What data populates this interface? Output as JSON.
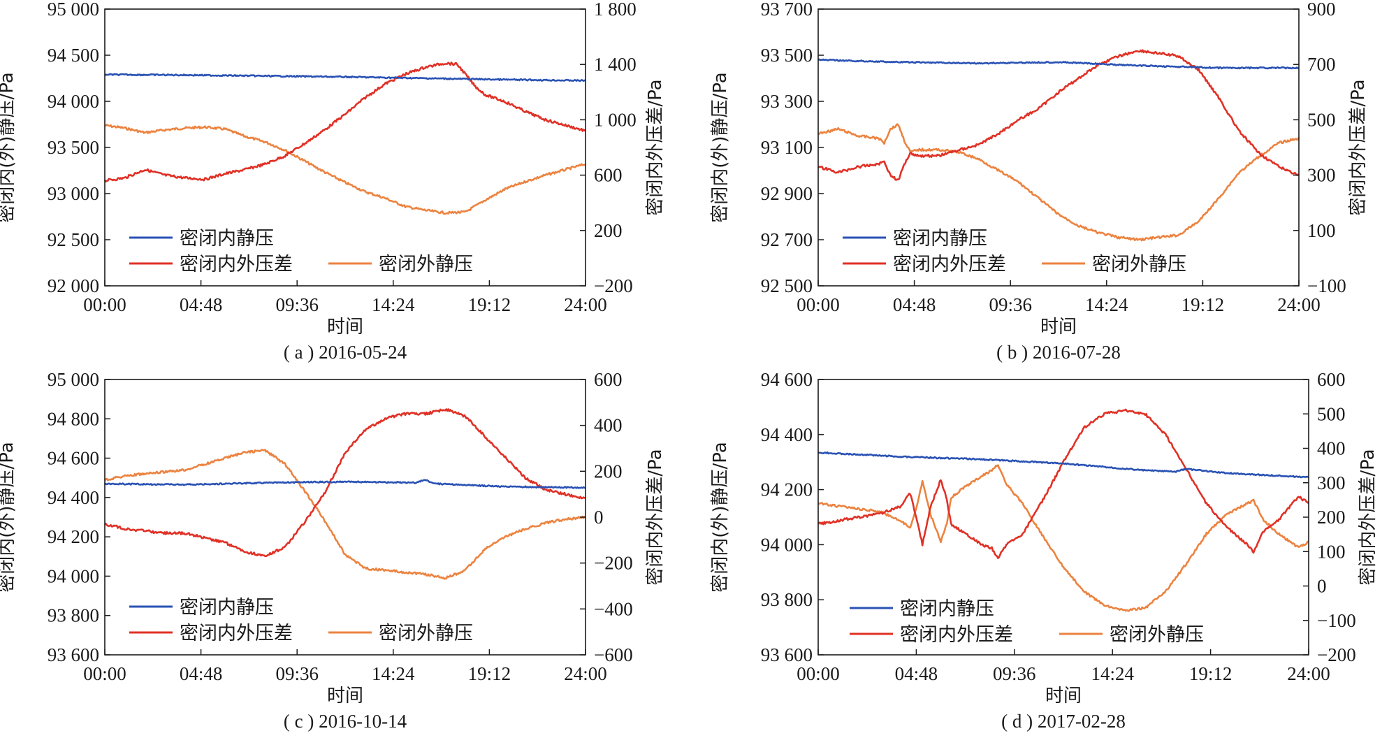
{
  "colors": {
    "inside": "#2a52b4",
    "difference": "#e03126",
    "outside": "#ec8340"
  },
  "chart_data": [
    {
      "type": "line",
      "caption": "( a ) 2016-05-24",
      "xlabel": "时间",
      "ylabel_left": "密闭内(外)静压/Pa",
      "ylabel_right": "密闭内外压差/Pa",
      "x_ticks": [
        "00:00",
        "04:48",
        "09:36",
        "14:24",
        "19:12",
        "24:00"
      ],
      "xlim_hours": [
        0,
        24
      ],
      "ylim_left": [
        92000,
        95000
      ],
      "ylim_right": [
        -200,
        1800
      ],
      "left_tick_labels": [
        "92 000",
        "92 500",
        "93 000",
        "93 500",
        "94 000",
        "94 500",
        "95 000"
      ],
      "left_tick_values": [
        92000,
        92500,
        93000,
        93500,
        94000,
        94500,
        95000
      ],
      "right_tick_labels": [
        "−200",
        "200",
        "600",
        "1 000",
        "1 400",
        "1 800"
      ],
      "right_tick_values": [
        -200,
        200,
        600,
        1000,
        1400,
        1800
      ],
      "legend": {
        "inside": "密闭内静压",
        "difference": "密闭内外压差",
        "outside": "密闭外静压"
      },
      "series": [
        {
          "key": "inside",
          "name": "密闭内静压",
          "axis": "left",
          "x": [
            0,
            4,
            8,
            12,
            16,
            20,
            24
          ],
          "y": [
            94290,
            94285,
            94275,
            94265,
            94250,
            94235,
            94225
          ]
        },
        {
          "key": "difference",
          "name": "密闭内外压差",
          "axis": "right",
          "x": [
            0,
            1,
            2,
            3,
            4,
            5,
            6,
            7,
            8,
            9,
            10,
            11,
            12,
            13,
            14,
            15,
            16,
            17,
            17.6,
            18,
            18.5,
            19,
            20,
            21,
            22,
            23,
            24
          ],
          "y": [
            560,
            580,
            640,
            600,
            580,
            570,
            610,
            640,
            680,
            740,
            830,
            930,
            1040,
            1160,
            1260,
            1330,
            1380,
            1410,
            1400,
            1330,
            1240,
            1180,
            1130,
            1060,
            1000,
            960,
            920
          ]
        },
        {
          "key": "outside",
          "name": "密闭外静压",
          "axis": "left",
          "x": [
            0,
            1,
            2,
            3,
            4,
            5,
            6,
            7,
            8,
            9,
            10,
            11,
            12,
            13,
            14,
            15,
            16,
            17,
            18,
            19,
            20,
            21,
            22,
            23,
            24
          ],
          "y": [
            93740,
            93710,
            93660,
            93690,
            93710,
            93720,
            93700,
            93620,
            93560,
            93470,
            93350,
            93230,
            93120,
            93020,
            92950,
            92860,
            92820,
            92790,
            92800,
            92930,
            93050,
            93130,
            93200,
            93260,
            93320
          ]
        }
      ]
    },
    {
      "type": "line",
      "caption": "( b ) 2016-07-28",
      "xlabel": "时间",
      "ylabel_left": "密闭内(外)静压/Pa",
      "ylabel_right": "密闭内外压差/Pa",
      "x_ticks": [
        "00:00",
        "04:48",
        "09:36",
        "14:24",
        "19:12",
        "24:00"
      ],
      "xlim_hours": [
        0,
        24
      ],
      "ylim_left": [
        92500,
        93700
      ],
      "ylim_right": [
        -100,
        900
      ],
      "left_tick_labels": [
        "92 500",
        "92 700",
        "92 900",
        "93 100",
        "93 300",
        "93 500",
        "93 700"
      ],
      "left_tick_values": [
        92500,
        92700,
        92900,
        93100,
        93300,
        93500,
        93700
      ],
      "right_tick_labels": [
        "−100",
        "100",
        "300",
        "500",
        "700",
        "900"
      ],
      "right_tick_values": [
        -100,
        100,
        300,
        500,
        700,
        900
      ],
      "legend": {
        "inside": "密闭内静压",
        "difference": "密闭内外压差",
        "outside": "密闭外静压"
      },
      "series": [
        {
          "key": "inside",
          "name": "密闭内静压",
          "axis": "left",
          "x": [
            0,
            4,
            8,
            12,
            16,
            20,
            24
          ],
          "y": [
            93480,
            93470,
            93465,
            93470,
            93455,
            93445,
            93445
          ]
        },
        {
          "key": "difference",
          "name": "密闭内外压差",
          "axis": "right",
          "x": [
            0,
            1,
            2,
            3,
            3.3,
            3.6,
            4,
            4.3,
            4.6,
            5,
            6,
            7,
            8,
            9,
            10,
            11,
            12,
            13,
            14,
            15,
            16,
            17,
            18,
            19,
            20,
            21,
            22,
            23,
            24
          ],
          "y": [
            330,
            310,
            330,
            340,
            350,
            300,
            280,
            340,
            380,
            370,
            370,
            390,
            410,
            450,
            500,
            540,
            600,
            650,
            700,
            730,
            750,
            740,
            730,
            680,
            580,
            460,
            380,
            330,
            300
          ]
        },
        {
          "key": "outside",
          "name": "密闭外静压",
          "axis": "left",
          "x": [
            0,
            1,
            2,
            3,
            3.3,
            3.6,
            4,
            4.3,
            4.6,
            5,
            6,
            7,
            8,
            9,
            10,
            11,
            12,
            13,
            14,
            15,
            16,
            17,
            18,
            19,
            20,
            21,
            22,
            23,
            24
          ],
          "y": [
            93160,
            93180,
            93150,
            93140,
            93120,
            93180,
            93200,
            93130,
            93080,
            93090,
            93090,
            93080,
            93050,
            93000,
            92950,
            92880,
            92810,
            92760,
            92730,
            92710,
            92700,
            92710,
            92720,
            92780,
            92880,
            92990,
            93060,
            93120,
            93140
          ]
        }
      ]
    },
    {
      "type": "line",
      "caption": "( c ) 2016-10-14",
      "xlabel": "时间",
      "ylabel_left": "密闭内(外)静压/Pa",
      "ylabel_right": "密闭内外压差/Pa",
      "x_ticks": [
        "00:00",
        "04:48",
        "09:36",
        "14:24",
        "19:12",
        "24:00"
      ],
      "xlim_hours": [
        0,
        24
      ],
      "ylim_left": [
        93600,
        95000
      ],
      "ylim_right": [
        -600,
        600
      ],
      "left_tick_labels": [
        "93 600",
        "93 800",
        "94 000",
        "94 200",
        "94 400",
        "94 600",
        "94 800",
        "95 000"
      ],
      "left_tick_values": [
        93600,
        93800,
        94000,
        94200,
        94400,
        94600,
        94800,
        95000
      ],
      "right_tick_labels": [
        "−600",
        "−400",
        "−200",
        "0",
        "200",
        "400",
        "600"
      ],
      "right_tick_values": [
        -600,
        -400,
        -200,
        0,
        200,
        400,
        600
      ],
      "legend": {
        "inside": "密闭内静压",
        "difference": "密闭内外压差",
        "outside": "密闭外静压"
      },
      "series": [
        {
          "key": "inside",
          "name": "密闭内静压",
          "axis": "left",
          "x": [
            0,
            4,
            8,
            12,
            15.5,
            16,
            16.5,
            20,
            24
          ],
          "y": [
            94470,
            94465,
            94475,
            94480,
            94475,
            94490,
            94470,
            94455,
            94450
          ]
        },
        {
          "key": "difference",
          "name": "密闭内外压差",
          "axis": "right",
          "x": [
            0,
            1,
            2,
            3,
            4,
            5,
            6,
            7,
            8,
            9,
            10,
            11,
            12,
            13,
            14,
            15,
            16,
            17,
            18,
            19,
            20,
            21,
            22,
            23,
            24
          ],
          "y": [
            -30,
            -50,
            -60,
            -70,
            -70,
            -90,
            -110,
            -150,
            -170,
            -130,
            -20,
            110,
            280,
            380,
            430,
            450,
            450,
            470,
            440,
            350,
            260,
            170,
            120,
            100,
            80
          ]
        },
        {
          "key": "outside",
          "name": "密闭外静压",
          "axis": "left",
          "x": [
            0,
            1,
            2,
            3,
            4,
            5,
            6,
            7,
            8,
            9,
            10,
            11,
            12,
            13,
            14,
            15,
            16,
            17,
            18,
            19,
            20,
            21,
            22,
            23,
            24
          ],
          "y": [
            94490,
            94510,
            94520,
            94530,
            94540,
            94570,
            94600,
            94630,
            94640,
            94570,
            94430,
            94280,
            94110,
            94040,
            94030,
            94020,
            94010,
            93990,
            94030,
            94140,
            94200,
            94240,
            94270,
            94290,
            94300
          ]
        }
      ]
    },
    {
      "type": "line",
      "caption": "( d ) 2017-02-28",
      "xlabel": "时间",
      "ylabel_left": "密闭内(外)静压/Pa",
      "ylabel_right": "密闭内外压差/Pa",
      "x_ticks": [
        "00:00",
        "04:48",
        "09:36",
        "14:24",
        "19:12",
        "24:00"
      ],
      "xlim_hours": [
        0,
        24
      ],
      "ylim_left": [
        93600,
        94600
      ],
      "ylim_right": [
        -200,
        600
      ],
      "left_tick_labels": [
        "93 600",
        "93 800",
        "94 000",
        "94 200",
        "94 400",
        "94 600"
      ],
      "left_tick_values": [
        93600,
        93800,
        94000,
        94200,
        94400,
        94600
      ],
      "right_tick_labels": [
        "−200",
        "−100",
        "0",
        "100",
        "200",
        "300",
        "400",
        "500",
        "600"
      ],
      "right_tick_values": [
        -200,
        -100,
        0,
        100,
        200,
        300,
        400,
        500,
        600
      ],
      "legend": {
        "inside": "密闭内静压",
        "difference": "密闭内外压差",
        "outside": "密闭外静压"
      },
      "series": [
        {
          "key": "inside",
          "name": "密闭内静压",
          "axis": "left",
          "x": [
            0,
            4,
            8,
            12,
            16,
            17.5,
            18,
            20,
            24
          ],
          "y": [
            94335,
            94320,
            94310,
            94295,
            94270,
            94265,
            94275,
            94260,
            94245
          ]
        },
        {
          "key": "difference",
          "name": "密闭内外压差",
          "axis": "right",
          "x": [
            0,
            1,
            2,
            3,
            4,
            4.5,
            4.8,
            5.1,
            5.5,
            6,
            6.3,
            6.5,
            7,
            8,
            8.5,
            8.8,
            9.2,
            10,
            11,
            12,
            13,
            14,
            15,
            16,
            17,
            18,
            19,
            20,
            21,
            21.3,
            21.8,
            22.5,
            23.5,
            24
          ],
          "y": [
            180,
            190,
            200,
            210,
            230,
            270,
            200,
            120,
            230,
            310,
            250,
            180,
            160,
            120,
            110,
            80,
            120,
            150,
            250,
            360,
            460,
            500,
            510,
            500,
            440,
            340,
            240,
            170,
            120,
            100,
            160,
            190,
            260,
            240
          ]
        },
        {
          "key": "outside",
          "name": "密闭外静压",
          "axis": "left",
          "x": [
            0,
            1,
            2,
            3,
            4,
            4.5,
            4.8,
            5.1,
            5.5,
            6,
            6.3,
            6.5,
            7,
            8,
            8.5,
            8.8,
            9.2,
            10,
            11,
            12,
            13,
            14,
            15,
            16,
            17,
            18,
            19,
            20,
            21,
            21.3,
            21.8,
            22.5,
            23.5,
            24
          ],
          "y": [
            94150,
            94140,
            94130,
            94120,
            94090,
            94060,
            94130,
            94230,
            94110,
            94010,
            94080,
            94170,
            94200,
            94250,
            94270,
            94290,
            94220,
            94150,
            94030,
            93920,
            93830,
            93780,
            93760,
            93770,
            93830,
            93930,
            94040,
            94110,
            94150,
            94160,
            94090,
            94040,
            93990,
            94010
          ]
        }
      ]
    }
  ]
}
